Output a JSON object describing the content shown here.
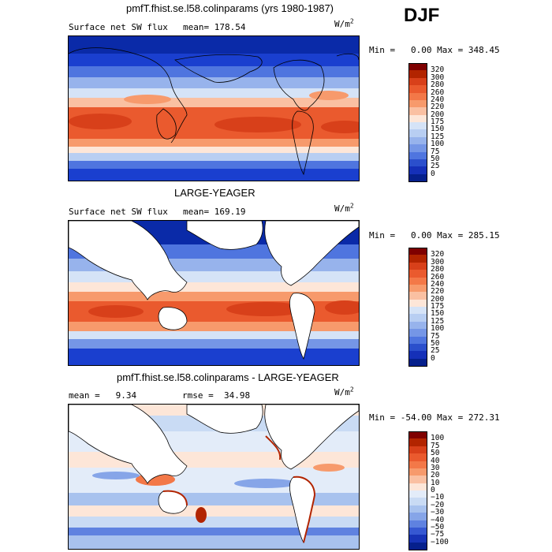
{
  "season": "DJF",
  "units_label": "W/m",
  "units_exponent": "2",
  "panels": [
    {
      "title": "pmfT.fhist.se.l58.colinparams (yrs 1980-1987)",
      "left_label": "Surface net SW flux",
      "stat_label": "mean=",
      "stat_value": "178.54",
      "min_label": "Min =",
      "min_value": "0.00",
      "max_label": "Max =",
      "max_value": "348.45",
      "levels": [
        "320",
        "300",
        "280",
        "260",
        "240",
        "220",
        "200",
        "175",
        "150",
        "125",
        "100",
        "75",
        "50",
        "25",
        "0"
      ],
      "colors": [
        "#7f0000",
        "#b22400",
        "#d8401a",
        "#ea5a2e",
        "#f37848",
        "#f79a6c",
        "#fac0a2",
        "#fde6d8",
        "#d5e3f7",
        "#b8cef2",
        "#97b3ec",
        "#7596e6",
        "#4f75df",
        "#2b4fcc",
        "#1530b8",
        "#06208c"
      ]
    },
    {
      "title": "LARGE-YEAGER",
      "left_label": "Surface net SW flux",
      "stat_label": "mean=",
      "stat_value": "169.19",
      "min_label": "Min =",
      "min_value": "0.00",
      "max_label": "Max =",
      "max_value": "285.15",
      "levels": [
        "320",
        "300",
        "280",
        "260",
        "240",
        "220",
        "200",
        "175",
        "150",
        "125",
        "100",
        "75",
        "50",
        "25",
        "0"
      ],
      "colors": [
        "#7f0000",
        "#b22400",
        "#d8401a",
        "#ea5a2e",
        "#f37848",
        "#f79a6c",
        "#fac0a2",
        "#fde6d8",
        "#d5e3f7",
        "#b8cef2",
        "#97b3ec",
        "#7596e6",
        "#4f75df",
        "#2b4fcc",
        "#1530b8",
        "#06208c"
      ]
    },
    {
      "title": "pmfT.fhist.se.l58.colinparams - LARGE-YEAGER",
      "left_label": "mean =",
      "stat_label": "rmse =",
      "stat_value": "34.98",
      "mean_value": "9.34",
      "min_label": "Min =",
      "min_value": "-54.00",
      "max_label": "Max =",
      "max_value": "272.31",
      "levels": [
        "100",
        "75",
        "50",
        "40",
        "30",
        "20",
        "10",
        "0",
        "−10",
        "−20",
        "−30",
        "−40",
        "−50",
        "−75",
        "−100"
      ],
      "colors": [
        "#7f0000",
        "#b22400",
        "#d8401a",
        "#ea5a2e",
        "#f37848",
        "#f79a6c",
        "#fac0a2",
        "#fde6d8",
        "#e3ecf9",
        "#c9dbf4",
        "#a8c2ee",
        "#86a5e8",
        "#5f82e0",
        "#3658d2",
        "#1733b6",
        "#06208c"
      ]
    }
  ],
  "chart_data": {
    "type": "heatmap",
    "title": "DJF",
    "variable": "Surface net SW flux",
    "units": "W/m2",
    "series": [
      {
        "name": "pmfT.fhist.se.l58.colinparams (yrs 1980-1987)",
        "mean": 178.54,
        "min": 0.0,
        "max": 348.45
      },
      {
        "name": "LARGE-YEAGER",
        "mean": 169.19,
        "min": 0.0,
        "max": 285.15
      },
      {
        "name": "pmfT.fhist.se.l58.colinparams - LARGE-YEAGER",
        "mean": 9.34,
        "rmse": 34.98,
        "min": -54.0,
        "max": 272.31
      }
    ],
    "contour_levels_abs": [
      0,
      25,
      50,
      75,
      100,
      125,
      150,
      175,
      200,
      220,
      240,
      260,
      280,
      300,
      320
    ],
    "contour_levels_diff": [
      -100,
      -75,
      -50,
      -40,
      -30,
      -20,
      -10,
      0,
      10,
      20,
      30,
      40,
      50,
      75,
      100
    ]
  }
}
